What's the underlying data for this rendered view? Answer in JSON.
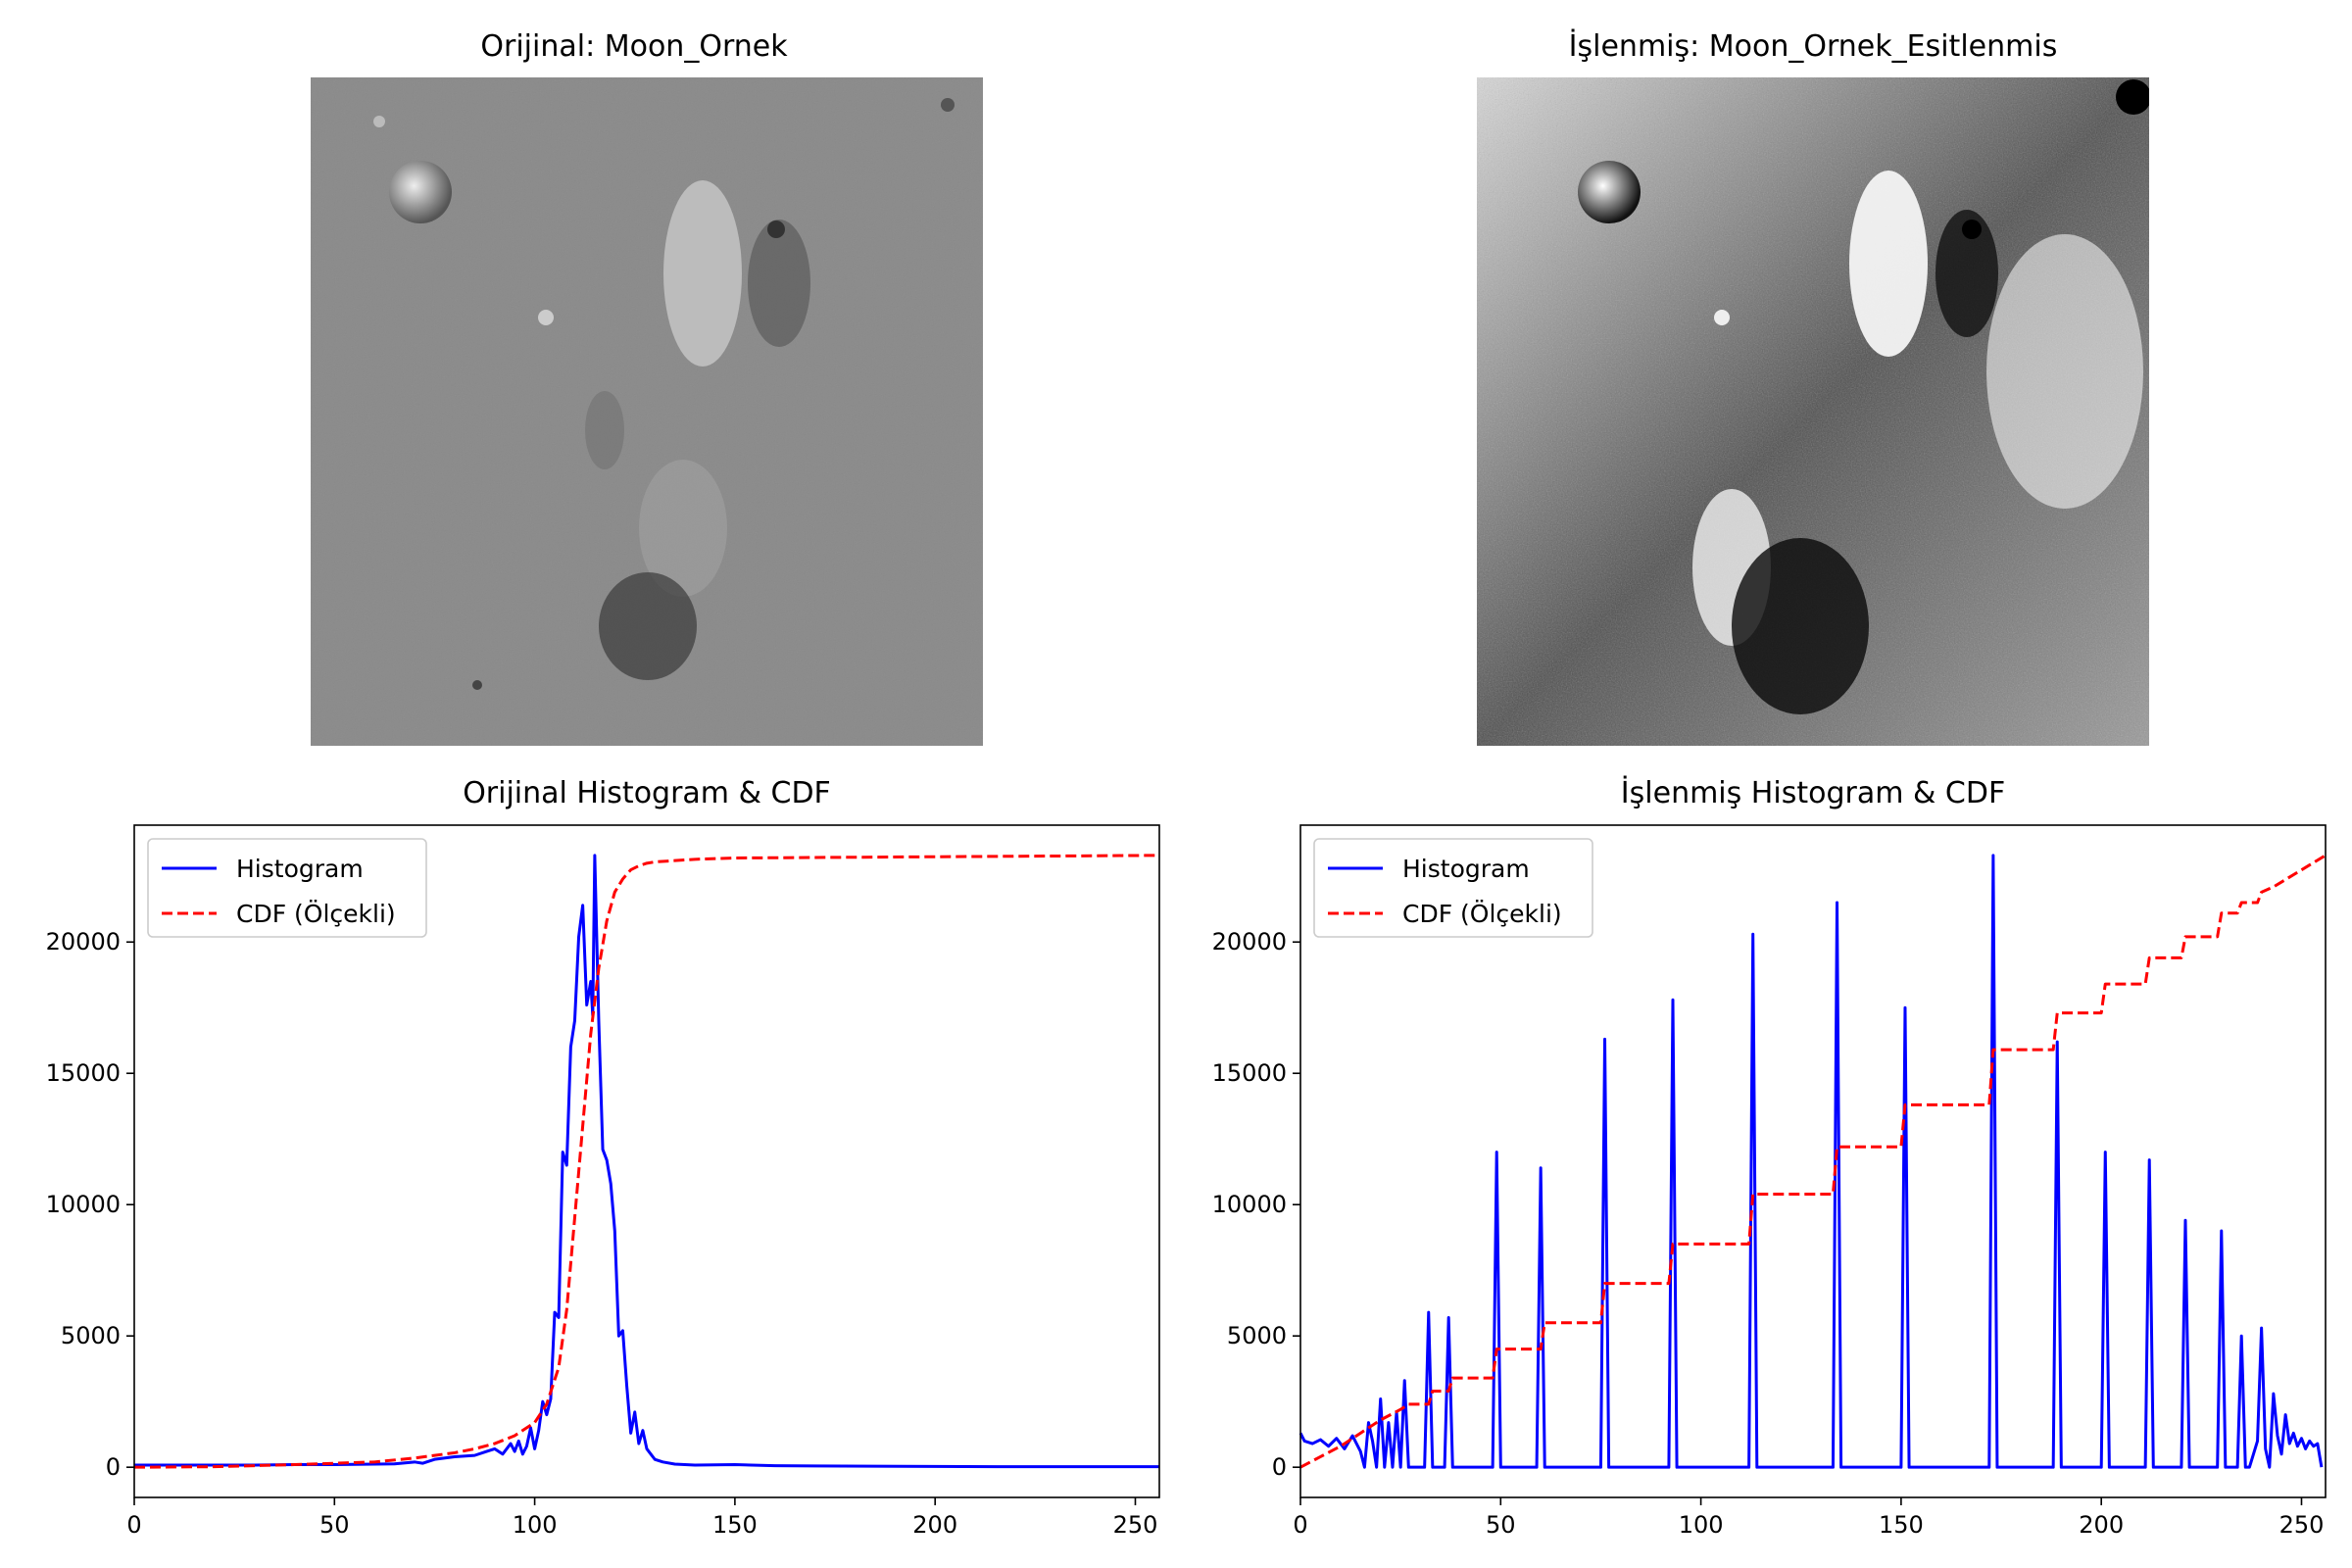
{
  "images": [
    {
      "title": "Orijinal: Moon_Ornek"
    },
    {
      "title": "İşlenmiş: Moon_Ornek_Esitlenmis"
    }
  ],
  "colors": {
    "histogram": "#0000ff",
    "cdf": "#ff0000",
    "axes": "#000000"
  },
  "chart_data": [
    {
      "type": "line",
      "title": "Orijinal Histogram & CDF",
      "xlabel": "",
      "ylabel": "",
      "xlim": [
        0,
        256
      ],
      "ylim": [
        -1150,
        24450
      ],
      "xticks": [
        0,
        50,
        100,
        150,
        200,
        250
      ],
      "yticks": [
        0,
        5000,
        10000,
        15000,
        20000
      ],
      "grid": false,
      "legend_position": "top-left",
      "series": [
        {
          "name": "Histogram",
          "style": "solid",
          "color": "#0000ff",
          "x": [
            0,
            10,
            20,
            30,
            40,
            50,
            60,
            65,
            70,
            72,
            75,
            80,
            85,
            88,
            90,
            92,
            94,
            95,
            96,
            97,
            98,
            99,
            100,
            101,
            102,
            103,
            104,
            105,
            106,
            107,
            108,
            109,
            110,
            111,
            112,
            113,
            114,
            114.5,
            115,
            116,
            117,
            118,
            119,
            120,
            121,
            122,
            123,
            124,
            125,
            126,
            127,
            128,
            129,
            130,
            132,
            135,
            140,
            150,
            160,
            170,
            200,
            220,
            256
          ],
          "y": [
            80,
            80,
            80,
            80,
            100,
            100,
            120,
            130,
            200,
            150,
            300,
            400,
            450,
            600,
            700,
            500,
            900,
            600,
            1000,
            500,
            800,
            1500,
            700,
            1400,
            2500,
            2000,
            2600,
            5900,
            5700,
            12000,
            11500,
            16000,
            17000,
            20200,
            21400,
            17600,
            18500,
            17200,
            23300,
            17000,
            12100,
            11700,
            10800,
            9000,
            5000,
            5200,
            3100,
            1300,
            2100,
            900,
            1400,
            700,
            500,
            300,
            200,
            120,
            80,
            100,
            60,
            50,
            30,
            20,
            20
          ]
        },
        {
          "name": "CDF (Ölçekli)",
          "style": "dashed",
          "color": "#ff0000",
          "x": [
            0,
            20,
            40,
            60,
            70,
            80,
            85,
            90,
            95,
            100,
            103,
            106,
            108,
            110,
            112,
            114,
            116,
            118,
            120,
            122,
            124,
            126,
            128,
            130,
            135,
            140,
            150,
            256
          ],
          "y": [
            0,
            20,
            100,
            200,
            350,
            550,
            700,
            900,
            1200,
            1700,
            2400,
            3800,
            6000,
            9500,
            13000,
            16500,
            19000,
            20800,
            21900,
            22400,
            22750,
            22900,
            23000,
            23050,
            23100,
            23150,
            23200,
            23300
          ]
        }
      ]
    },
    {
      "type": "line",
      "title": "İşlenmiş Histogram & CDF",
      "xlabel": "",
      "ylabel": "",
      "xlim": [
        0,
        256
      ],
      "ylim": [
        -1150,
        24450
      ],
      "xticks": [
        0,
        50,
        100,
        150,
        200,
        250
      ],
      "yticks": [
        0,
        5000,
        10000,
        15000,
        20000
      ],
      "grid": false,
      "legend_position": "top-left",
      "series": [
        {
          "name": "Histogram",
          "style": "solid",
          "color": "#0000ff",
          "x": [
            0,
            1,
            3,
            5,
            7,
            9,
            11,
            13,
            15,
            16,
            17,
            18,
            19,
            20,
            21,
            22,
            23,
            24,
            25,
            26,
            27,
            28,
            29,
            30,
            31,
            32,
            33,
            34,
            35,
            36,
            37,
            38,
            39,
            48,
            49,
            50,
            51,
            59,
            60,
            61,
            62,
            75,
            76,
            77,
            78,
            92,
            93,
            94,
            95,
            112,
            113,
            114,
            115,
            133,
            134,
            135,
            136,
            150,
            151,
            152,
            153,
            172,
            173,
            174,
            175,
            188,
            189,
            190,
            191,
            200,
            201,
            202,
            203,
            211,
            212,
            213,
            214,
            220,
            221,
            222,
            223,
            229,
            230,
            231,
            232,
            234,
            235,
            236,
            237,
            239,
            240,
            241,
            242,
            243,
            244,
            245,
            246,
            247,
            248,
            249,
            250,
            251,
            252,
            253,
            254,
            255
          ],
          "y": [
            1300,
            1000,
            900,
            1050,
            800,
            1100,
            700,
            1200,
            600,
            0,
            1700,
            1000,
            0,
            2600,
            0,
            1700,
            0,
            2100,
            0,
            3300,
            0,
            0,
            0,
            0,
            0,
            5900,
            0,
            0,
            0,
            0,
            5700,
            0,
            0,
            0,
            12000,
            0,
            0,
            0,
            11400,
            0,
            0,
            0,
            16300,
            0,
            0,
            0,
            17800,
            0,
            0,
            0,
            20300,
            0,
            0,
            0,
            21500,
            0,
            0,
            0,
            17500,
            0,
            0,
            0,
            23300,
            0,
            0,
            0,
            16200,
            0,
            0,
            0,
            12000,
            0,
            0,
            0,
            11700,
            0,
            0,
            0,
            9400,
            0,
            0,
            0,
            9000,
            0,
            0,
            0,
            5000,
            0,
            0,
            1000,
            5300,
            700,
            0,
            2800,
            1200,
            500,
            2000,
            900,
            1300,
            800,
            1100,
            700,
            1000,
            800,
            900,
            0
          ]
        },
        {
          "name": "CDF (Ölçekli)",
          "style": "dashed",
          "color": "#ff0000",
          "x": [
            0,
            5,
            10,
            15,
            20,
            25,
            27,
            32,
            33,
            37,
            38,
            48,
            49,
            60,
            61,
            75,
            76,
            92,
            93,
            112,
            113,
            133,
            134,
            150,
            151,
            172,
            173,
            188,
            189,
            200,
            201,
            211,
            212,
            220,
            221,
            229,
            230,
            234,
            235,
            239,
            240,
            243,
            256
          ],
          "y": [
            0,
            400,
            800,
            1300,
            1800,
            2200,
            2400,
            2400,
            2900,
            2900,
            3400,
            3400,
            4500,
            4500,
            5500,
            5500,
            7000,
            7000,
            8500,
            8500,
            10400,
            10400,
            12200,
            12200,
            13800,
            13800,
            15900,
            15900,
            17300,
            17300,
            18400,
            18400,
            19400,
            19400,
            20200,
            20200,
            21100,
            21100,
            21500,
            21500,
            21900,
            22100,
            23300
          ]
        }
      ]
    }
  ]
}
